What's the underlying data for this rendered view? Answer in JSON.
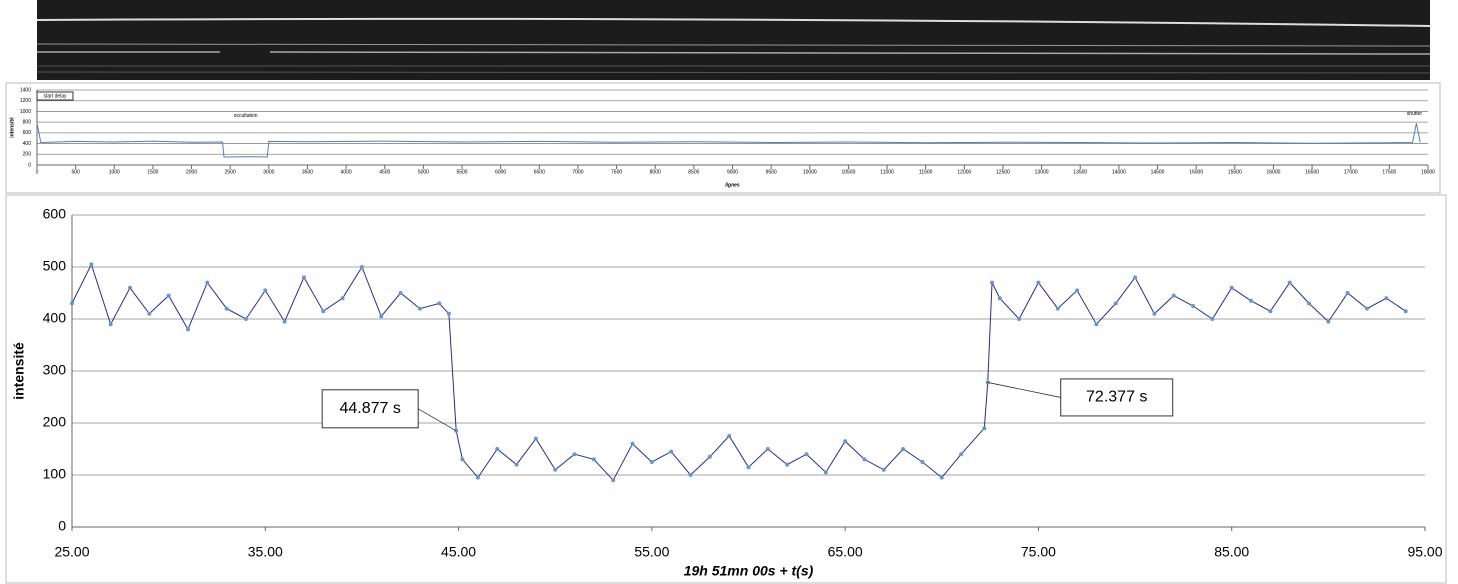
{
  "chart_data": [
    {
      "type": "line",
      "color": "#4f81bd",
      "grid": true,
      "markers": false,
      "x_label": "lignes",
      "y_label": "intensité",
      "x": [
        0,
        50,
        500,
        1000,
        1500,
        2000,
        2400,
        2420,
        2700,
        2980,
        3000,
        3500,
        4500,
        5500,
        6500,
        7500,
        8500,
        9500,
        10500,
        11500,
        12500,
        13500,
        14500,
        15500,
        16500,
        17500,
        17800,
        17850,
        17900
      ],
      "values": [
        780,
        420,
        440,
        430,
        445,
        425,
        430,
        150,
        155,
        150,
        440,
        435,
        445,
        430,
        440,
        425,
        435,
        420,
        430,
        415,
        425,
        420,
        410,
        420,
        405,
        415,
        420,
        780,
        420
      ],
      "xlim": [
        0,
        18000
      ],
      "ylim": [
        0,
        1400
      ],
      "xticks": [
        0,
        500,
        1000,
        1500,
        2000,
        2500,
        3000,
        3500,
        4000,
        4500,
        5000,
        5500,
        6000,
        6500,
        7000,
        7500,
        8000,
        8500,
        9000,
        9500,
        10000,
        10500,
        11000,
        11500,
        12000,
        12500,
        13000,
        13500,
        14000,
        14500,
        15000,
        15500,
        16000,
        16500,
        17000,
        17500,
        18000
      ],
      "yticks": [
        0,
        200,
        400,
        600,
        800,
        1000,
        1200,
        1400
      ],
      "annotations": [
        {
          "text": "start delay",
          "x": 0,
          "y": 1400
        },
        {
          "text": "occultation",
          "x": 2700,
          "y": 850
        },
        {
          "text": "shutter",
          "x": 17850,
          "y": 850
        }
      ]
    },
    {
      "type": "line",
      "color": "#2e2a8c",
      "marker_color": "#5b9bd5",
      "grid": true,
      "markers": true,
      "x_label": "19h 51mn 00s + t(s)",
      "y_label": "intensité",
      "x": [
        25,
        26,
        27,
        28,
        29,
        30,
        31,
        32,
        33,
        34,
        35,
        36,
        37,
        38,
        39,
        40,
        41,
        42,
        43,
        44,
        44.5,
        44.877,
        45.2,
        46,
        47,
        48,
        49,
        50,
        51,
        52,
        53,
        54,
        55,
        56,
        57,
        58,
        59,
        60,
        61,
        62,
        63,
        64,
        65,
        66,
        67,
        68,
        69,
        70,
        71,
        72.2,
        72.377,
        72.6,
        73,
        74,
        75,
        76,
        77,
        78,
        79,
        80,
        81,
        82,
        83,
        84,
        85,
        86,
        87,
        88,
        89,
        90,
        91,
        92,
        93,
        94
      ],
      "values": [
        430,
        505,
        390,
        460,
        410,
        445,
        380,
        470,
        420,
        400,
        455,
        395,
        480,
        415,
        440,
        500,
        405,
        450,
        420,
        430,
        410,
        185,
        130,
        95,
        150,
        120,
        170,
        110,
        140,
        130,
        90,
        160,
        125,
        145,
        100,
        135,
        175,
        115,
        150,
        120,
        140,
        105,
        165,
        130,
        110,
        150,
        125,
        95,
        140,
        190,
        278,
        470,
        440,
        400,
        470,
        420,
        455,
        390,
        430,
        480,
        410,
        445,
        425,
        400,
        460,
        435,
        415,
        470,
        430,
        395,
        450,
        420,
        440,
        415
      ],
      "xlim": [
        25,
        95
      ],
      "ylim": [
        0,
        600
      ],
      "xticks": [
        {
          "value": 25,
          "label": "25.00"
        },
        {
          "value": 35,
          "label": "35.00"
        },
        {
          "value": 45,
          "label": "45.00"
        },
        {
          "value": 55,
          "label": "55.00"
        },
        {
          "value": 65,
          "label": "65.00"
        },
        {
          "value": 75,
          "label": "75.00"
        },
        {
          "value": 85,
          "label": "85.00"
        },
        {
          "value": 95,
          "label": "95.00"
        }
      ],
      "yticks": [
        0,
        100,
        200,
        300,
        400,
        500,
        600
      ],
      "annotations": [
        {
          "text": "44.877 s",
          "x": 44.877,
          "y": 185
        },
        {
          "text": "72.377 s",
          "x": 72.377,
          "y": 278
        }
      ]
    }
  ]
}
